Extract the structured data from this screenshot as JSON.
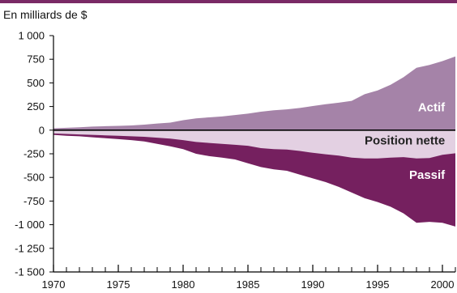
{
  "chart_data": {
    "type": "area",
    "unit_label": "En milliards de $",
    "x_range": [
      1970,
      2001
    ],
    "ylim": [
      -1500,
      1000
    ],
    "y_ticks": [
      1000,
      750,
      500,
      250,
      0,
      -250,
      -500,
      -750,
      -1000,
      -1250,
      -1500
    ],
    "y_tick_labels": [
      "1 000",
      "750",
      "500",
      "250",
      "0",
      "-250",
      "-500",
      "-750",
      "-1 000",
      "-1 250",
      "-1 500"
    ],
    "x_ticks": [
      1970,
      1975,
      1980,
      1985,
      1990,
      1995,
      2000
    ],
    "x_tick_labels": [
      "1970",
      "1975",
      "1980",
      "1985",
      "1990",
      "1995",
      "2000"
    ],
    "grid": false,
    "x": [
      1970,
      1971,
      1972,
      1973,
      1974,
      1975,
      1976,
      1977,
      1978,
      1979,
      1980,
      1981,
      1982,
      1983,
      1984,
      1985,
      1986,
      1987,
      1988,
      1989,
      1990,
      1991,
      1992,
      1993,
      1994,
      1995,
      1996,
      1997,
      1998,
      1999,
      2000,
      2001
    ],
    "series": [
      {
        "name": "Actif",
        "color": "#a583a8",
        "values": [
          20,
          25,
          30,
          38,
          42,
          45,
          50,
          58,
          70,
          80,
          105,
          125,
          135,
          145,
          160,
          175,
          195,
          210,
          220,
          235,
          255,
          275,
          290,
          310,
          380,
          420,
          480,
          560,
          660,
          690,
          730,
          780
        ]
      },
      {
        "name": "Position nette",
        "color": "#e3d0e2",
        "values": [
          -35,
          -40,
          -45,
          -50,
          -55,
          -60,
          -65,
          -70,
          -80,
          -90,
          -105,
          -125,
          -135,
          -145,
          -155,
          -165,
          -190,
          -200,
          -205,
          -220,
          -240,
          -255,
          -270,
          -290,
          -300,
          -300,
          -290,
          -285,
          -300,
          -295,
          -260,
          -245
        ]
      },
      {
        "name": "Passif",
        "color": "#75205f",
        "values": [
          -50,
          -60,
          -65,
          -75,
          -85,
          -95,
          -105,
          -120,
          -145,
          -170,
          -200,
          -250,
          -275,
          -290,
          -310,
          -350,
          -390,
          -415,
          -430,
          -470,
          -510,
          -550,
          -600,
          -660,
          -720,
          -760,
          -810,
          -880,
          -980,
          -970,
          -980,
          -1020
        ]
      }
    ]
  }
}
